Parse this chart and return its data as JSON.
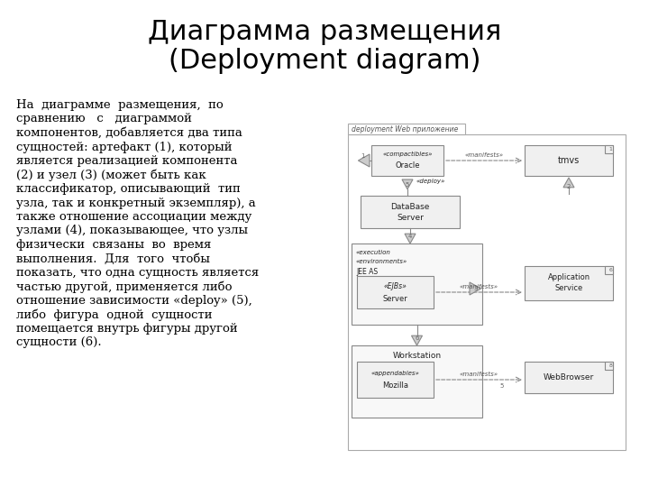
{
  "title_line1": "Диаграмма размещения",
  "title_line2": "(Deployment diagram)",
  "title_fontsize": 22,
  "body_fontsize": 9.5,
  "bg_color": "#ffffff",
  "text_color": "#000000",
  "diagram_label": "deployment Web приложение",
  "body_lines": [
    "На  диаграмме  размещения,  по",
    "сравнению   с   диаграммой",
    "компонентов, добавляется два типа",
    "сущностей: артефакт (1), который",
    "является реализацией компонента",
    "(2) и узел (3) (может быть как",
    "классификатор, описывающий  тип",
    "узла, так и конкретный экземпляр), а",
    "также отношение ассоциации между",
    "узлами (4), показывающее, что узлы",
    "физически  связаны  во  время",
    "выполнения.  Для  того  чтобы",
    "показать, что одна сущность является",
    "частью другой, применяется либо",
    "отношение зависимости «deploy» (5),",
    "либо  фигура  одной  сущности",
    "помещается внутрь фигуры другой",
    "сущности (6)."
  ]
}
